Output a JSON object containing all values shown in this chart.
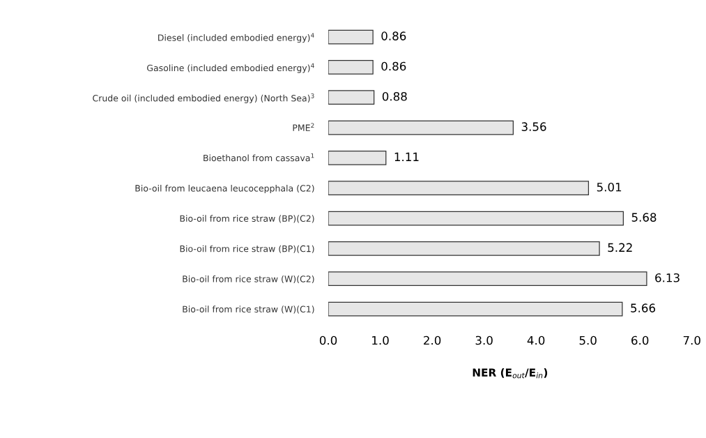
{
  "chart_data": {
    "type": "bar",
    "orientation": "horizontal",
    "categories": [
      "Diesel (included embodied energy)$^{4}$",
      "Gasoline (included embodied energy)$^{4}$",
      "Crude oil (included embodied energy) (North Sea)$^{3}$",
      "PME$^{2}$",
      "Bioethanol from cassava$^{1}$",
      "Bio-oil from leucaena leucocepphala (C2)",
      "Bio-oil from rice straw (BP)(C2)",
      "Bio-oil from rice straw (BP)(C1)",
      "Bio-oil from rice straw (W)(C2)",
      "Bio-oil from rice straw (W)(C1)"
    ],
    "values": [
      0.86,
      0.86,
      0.88,
      3.56,
      1.11,
      5.01,
      5.68,
      5.22,
      6.13,
      5.66
    ],
    "color": "#e6e6e6",
    "data_labels": true,
    "xlabel": "NER (E$_{out}$/E$_{in}$)",
    "xlim": [
      0,
      7
    ],
    "xticks": [
      {
        "value": 0,
        "label": "0.0"
      },
      {
        "value": 1,
        "label": "1.0"
      },
      {
        "value": 2,
        "label": "2.0"
      },
      {
        "value": 3,
        "label": "3.0"
      },
      {
        "value": 4,
        "label": "4.0"
      },
      {
        "value": 5,
        "label": "5.0"
      },
      {
        "value": 6,
        "label": "6.0"
      },
      {
        "value": 7,
        "label": "7.0"
      }
    ],
    "grid": false,
    "legend": false
  }
}
